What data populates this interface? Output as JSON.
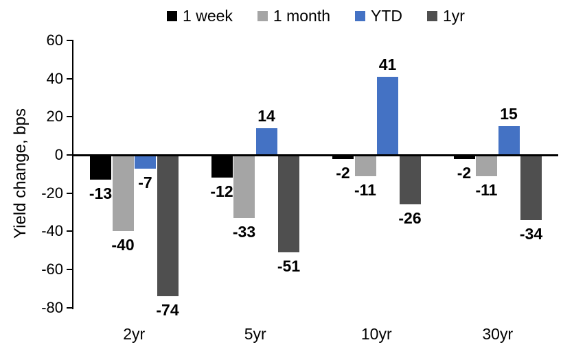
{
  "chart_data": {
    "type": "bar",
    "title": "",
    "xlabel": "",
    "ylabel": "Yield change, bps",
    "categories": [
      "2yr",
      "5yr",
      "10yr",
      "30yr"
    ],
    "series": [
      {
        "name": "1 week",
        "color": "#000000",
        "values": [
          -13,
          -12,
          -2,
          -2
        ]
      },
      {
        "name": "1 month",
        "color": "#A5A5A5",
        "values": [
          -40,
          -33,
          -11,
          -11
        ]
      },
      {
        "name": "YTD",
        "color": "#4472C4",
        "values": [
          -7,
          14,
          41,
          15
        ]
      },
      {
        "name": "1yr",
        "color": "#4F4F4F",
        "values": [
          -74,
          -51,
          -26,
          -34
        ]
      }
    ],
    "ylim": [
      -80,
      60
    ],
    "yticks": [
      60,
      40,
      20,
      0,
      -20,
      -40,
      -60,
      -80
    ],
    "legend_position": "top",
    "grid": false,
    "data_labels": true
  }
}
